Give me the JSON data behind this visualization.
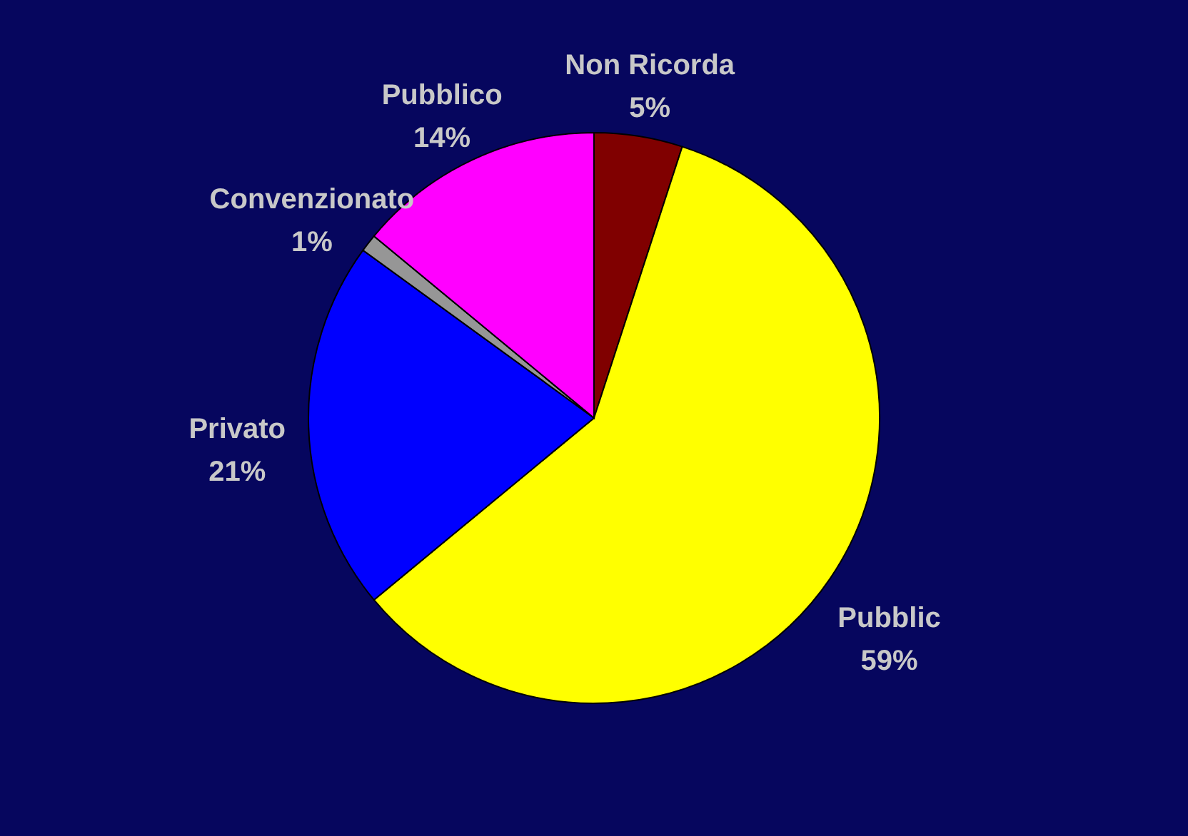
{
  "chart_data": {
    "type": "pie",
    "categories": [
      "Non Ricorda",
      "Pubblic",
      "Privato",
      "Convenzionato",
      "Pubblico"
    ],
    "values": [
      5,
      59,
      21,
      1,
      14
    ],
    "colors": [
      "#800000",
      "#ffff00",
      "#0000ff",
      "#969696",
      "#ff00ff"
    ],
    "value_labels": [
      "5%",
      "59%",
      "21%",
      "1%",
      "14%"
    ]
  }
}
